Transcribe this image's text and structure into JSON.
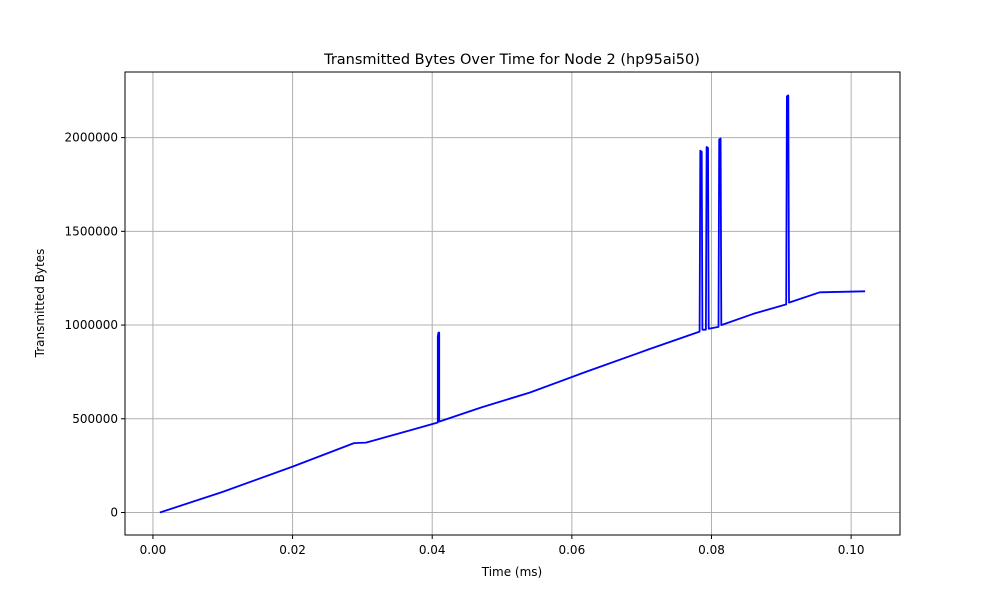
{
  "chart_data": {
    "type": "line",
    "title": "Transmitted Bytes Over Time for Node 2 (hp95ai50)",
    "xlabel": "Time (ms)",
    "ylabel": "Transmitted Bytes",
    "xlim": [
      -0.004,
      0.107
    ],
    "ylim": [
      -120000,
      2350000
    ],
    "xticks": [
      0.0,
      0.02,
      0.04,
      0.06,
      0.08,
      0.1
    ],
    "xtick_labels": [
      "0.00",
      "0.02",
      "0.04",
      "0.06",
      "0.08",
      "0.10"
    ],
    "yticks": [
      0,
      500000,
      1000000,
      1500000,
      2000000
    ],
    "ytick_labels": [
      "0",
      "500000",
      "1000000",
      "1500000",
      "2000000"
    ],
    "grid": true,
    "color": "#0000ff",
    "series": [
      {
        "x": [
          0.001,
          0.01,
          0.02,
          0.0288,
          0.0305,
          0.037,
          0.0408,
          0.0408,
          0.0409,
          0.0409,
          0.041,
          0.041,
          0.047,
          0.054,
          0.062,
          0.071,
          0.0783,
          0.0784,
          0.0786,
          0.0787,
          0.0792,
          0.0793,
          0.0795,
          0.0796,
          0.081,
          0.0811,
          0.0813,
          0.0814,
          0.086,
          0.0907,
          0.0908,
          0.091,
          0.0911,
          0.0955,
          0.102
        ],
        "y": [
          0,
          110000,
          245000,
          370000,
          373000,
          440000,
          480000,
          940000,
          960000,
          950000,
          960000,
          485000,
          560000,
          640000,
          750000,
          870000,
          965000,
          1930000,
          1925000,
          975000,
          975000,
          1950000,
          1945000,
          980000,
          990000,
          1990000,
          1995000,
          1000000,
          1060000,
          1110000,
          2220000,
          2225000,
          1120000,
          1175000,
          1180000
        ]
      }
    ]
  }
}
